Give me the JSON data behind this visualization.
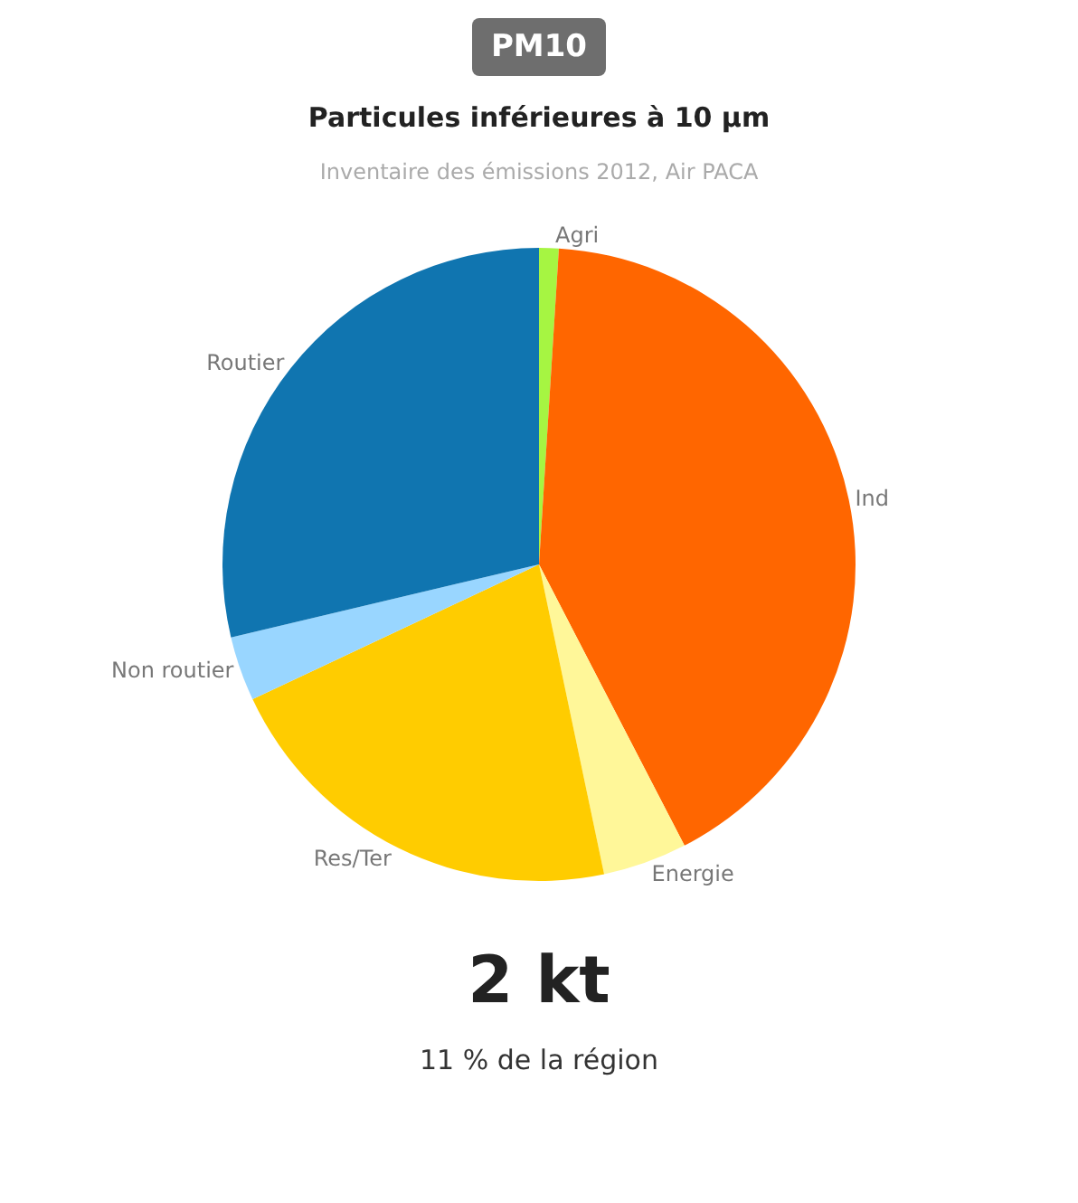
{
  "chart_data": {
    "type": "pie",
    "title": "Particules inférieures à 10 µm",
    "subtitle": "Inventaire des émissions 2012, Air PACA",
    "categories": [
      "Agri",
      "Ind",
      "Energie",
      "Res/Ter",
      "Non routier",
      "Routier"
    ],
    "values": [
      1,
      41.4,
      4.3,
      21.3,
      3.3,
      28.7
    ],
    "colors": [
      "#a6f542",
      "#ff6600",
      "#fff799",
      "#ffcc00",
      "#99d6ff",
      "#1075b0"
    ],
    "annotations": [
      "PM10",
      "2 kt",
      "11 % de la région"
    ],
    "legend": false
  }
}
